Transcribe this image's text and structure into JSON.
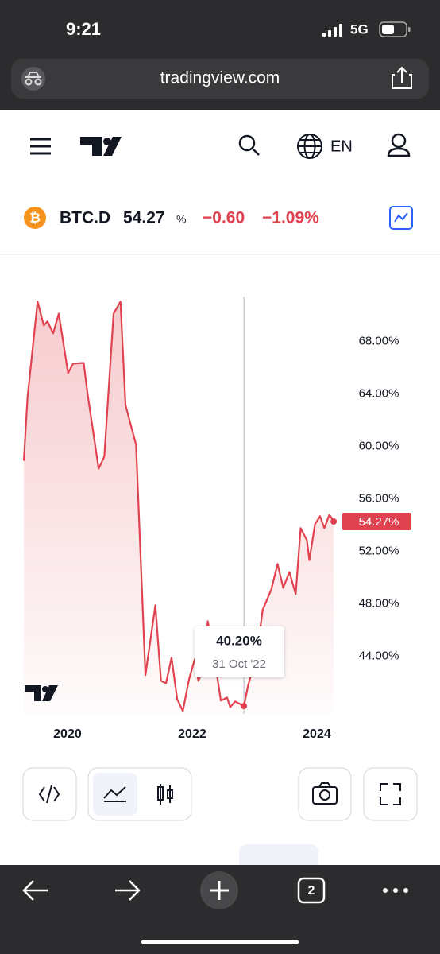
{
  "status_bar": {
    "time": "9:21",
    "network": "5G"
  },
  "browser": {
    "url": "tradingview.com",
    "tab_count": "2"
  },
  "header": {
    "language": "EN"
  },
  "ticker": {
    "symbol": "BTC.D",
    "price": "54.27",
    "unit": "%",
    "change": "−0.60",
    "change_percent": "−1.09%"
  },
  "chart_data": {
    "type": "line",
    "color": "#e0434f",
    "x": [
      2019.3,
      2019.36,
      2019.52,
      2019.62,
      2019.68,
      2019.77,
      2019.86,
      2020.01,
      2020.09,
      2020.26,
      2020.32,
      2020.5,
      2020.59,
      2020.74,
      2020.85,
      2020.93,
      2021.1,
      2021.25,
      2021.41,
      2021.5,
      2021.58,
      2021.67,
      2021.76,
      2021.85,
      2021.95,
      2022.04,
      2022.1,
      2022.19,
      2022.25,
      2022.32,
      2022.46,
      2022.56,
      2022.61,
      2022.69,
      2022.83,
      2022.9,
      2023.04,
      2023.13,
      2023.27,
      2023.37,
      2023.46,
      2023.56,
      2023.66,
      2023.74,
      2023.84,
      2023.88,
      2023.97,
      2024.05,
      2024.12,
      2024.2,
      2024.27
    ],
    "values": [
      58.91,
      63.76,
      71.03,
      69.21,
      69.52,
      68.61,
      70.12,
      65.58,
      66.3,
      66.36,
      64.06,
      58.3,
      59.21,
      70.12,
      71.03,
      63.15,
      60.12,
      42.55,
      47.88,
      42.12,
      41.94,
      43.88,
      40.73,
      39.82,
      42.24,
      43.76,
      42.12,
      43.15,
      46.67,
      44.97,
      40.61,
      40.85,
      40.12,
      40.55,
      40.2,
      41.82,
      44.24,
      47.52,
      49.09,
      51.03,
      49.21,
      50.42,
      48.73,
      53.76,
      52.85,
      51.33,
      54.06,
      54.67,
      53.76,
      54.79,
      54.27
    ],
    "xlim": [
      2019.3,
      2024.3
    ],
    "xticks": [
      2020,
      2022,
      2024
    ],
    "ylim": [
      39.6,
      71.6
    ],
    "yticks": [
      {
        "value": 44,
        "label": "44.00%"
      },
      {
        "value": 48,
        "label": "48.00%"
      },
      {
        "value": 52,
        "label": "52.00%"
      },
      {
        "value": 56,
        "label": "56.00%"
      },
      {
        "value": 60,
        "label": "60.00%"
      },
      {
        "value": 64,
        "label": "64.00%"
      },
      {
        "value": 68,
        "label": "68.00%"
      }
    ],
    "last_value": {
      "value": 54.27,
      "label": "54.27%"
    },
    "tooltip": {
      "x": 2022.83,
      "value": 40.2,
      "label": "40.20%",
      "date": "31 Oct '22"
    }
  }
}
